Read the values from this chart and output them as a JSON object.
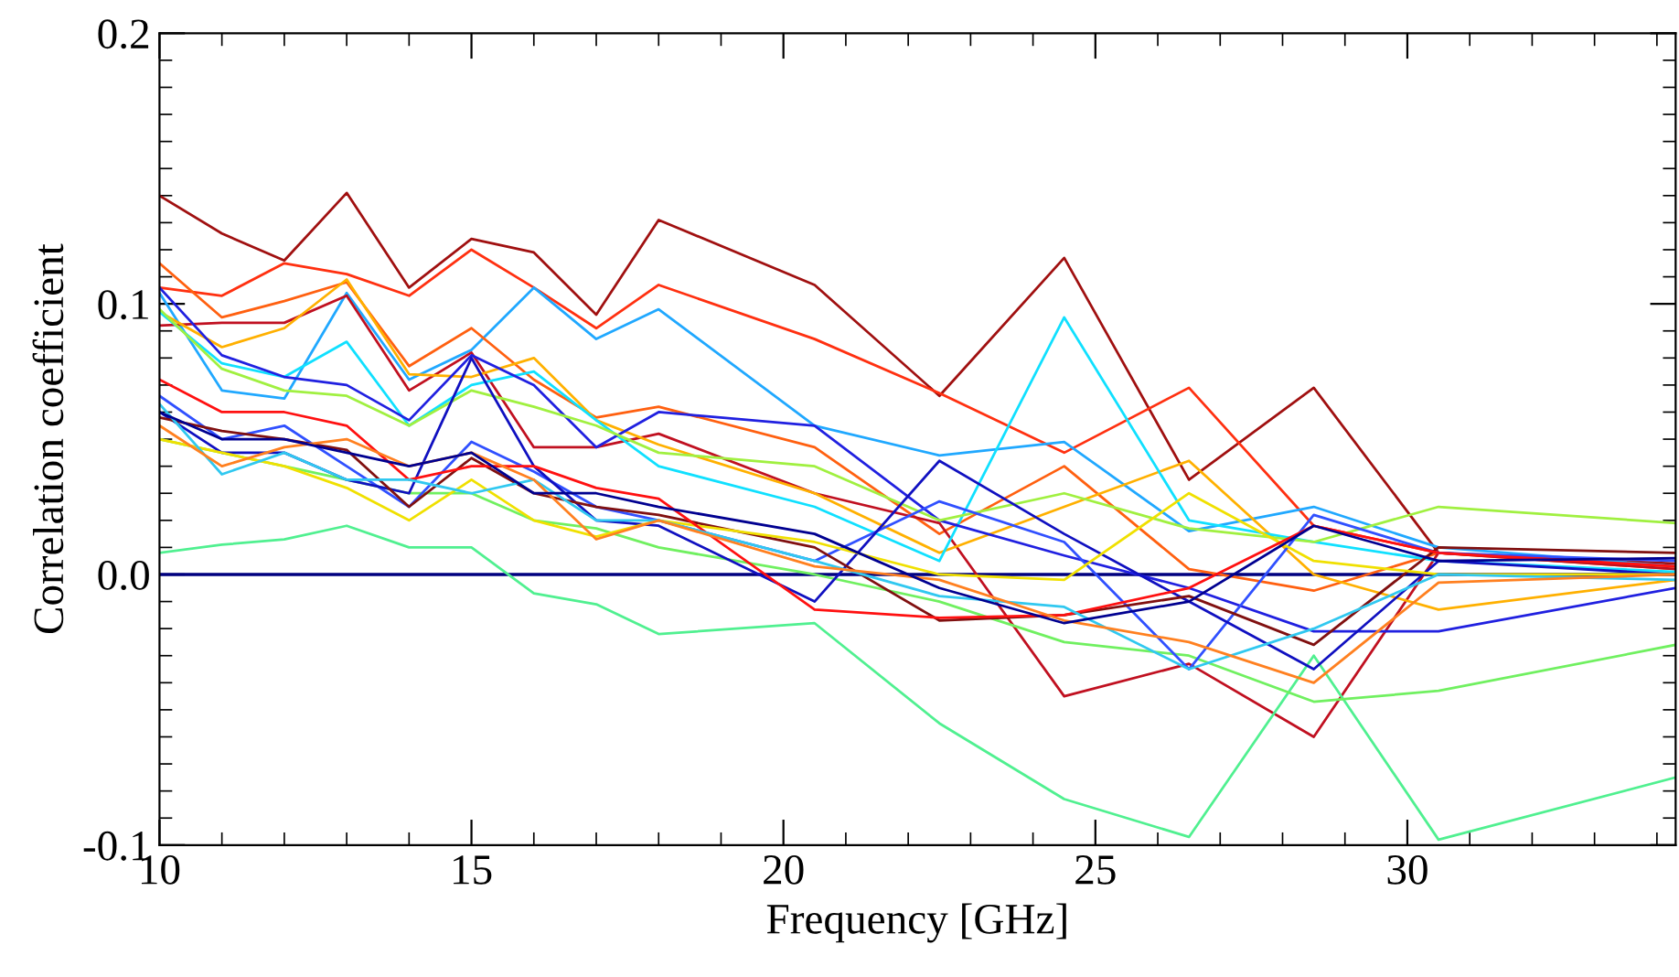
{
  "chart_data": {
    "type": "line",
    "xlabel": "Frequency [GHz]",
    "ylabel": "Correlation coefficient",
    "x": [
      10,
      11,
      12,
      13,
      14,
      15,
      16,
      17,
      18,
      20.5,
      22.5,
      24.5,
      26.5,
      28.5,
      30.5,
      34.3
    ],
    "xlim": [
      10,
      34.3
    ],
    "xticks": [
      10,
      15,
      20,
      25,
      30
    ],
    "ylim": [
      -0.1,
      0.2
    ],
    "yticks": [
      -0.1,
      {
        "value": 0,
        "label": "0.0"
      },
      0.1,
      0.2
    ],
    "grid": false,
    "legend": false,
    "marker": "none",
    "line_style": "solid",
    "ref_lines": [
      {
        "axis": "y",
        "value": 0.0,
        "label": null,
        "color": "#00007f",
        "line_style": "solid"
      }
    ],
    "series": [
      {
        "color": "#a01010",
        "values": [
          0.14,
          0.126,
          0.116,
          0.141,
          0.106,
          0.124,
          0.119,
          0.096,
          0.131,
          0.107,
          0.066,
          0.117,
          0.035,
          0.069,
          0.008,
          0.004
        ]
      },
      {
        "color": "#ff3010",
        "values": [
          0.106,
          0.103,
          0.115,
          0.111,
          0.103,
          0.12,
          0.106,
          0.091,
          0.107,
          0.087,
          0.067,
          0.045,
          0.069,
          0.018,
          0.008,
          0.003
        ]
      },
      {
        "color": "#20a8ff",
        "values": [
          0.104,
          0.068,
          0.065,
          0.104,
          0.072,
          0.083,
          0.106,
          0.087,
          0.098,
          0.055,
          0.044,
          0.049,
          0.016,
          0.025,
          0.01,
          0.003
        ]
      },
      {
        "color": "#ff6010",
        "values": [
          0.115,
          0.095,
          0.101,
          0.108,
          0.077,
          0.091,
          0.072,
          0.058,
          0.062,
          0.047,
          0.015,
          0.04,
          0.002,
          -0.006,
          0.008,
          0.002
        ]
      },
      {
        "color": "#c01020",
        "values": [
          0.092,
          0.093,
          0.093,
          0.103,
          0.068,
          0.082,
          0.047,
          0.047,
          0.052,
          0.03,
          0.019,
          -0.045,
          -0.033,
          -0.06,
          0.008,
          0.002
        ]
      },
      {
        "color": "#ffb000",
        "values": [
          0.097,
          0.084,
          0.091,
          0.109,
          0.074,
          0.073,
          0.08,
          0.057,
          0.048,
          0.03,
          0.008,
          0.025,
          0.042,
          0.0,
          -0.013,
          -0.002
        ]
      },
      {
        "color": "#10e0ff",
        "values": [
          0.097,
          0.078,
          0.073,
          0.086,
          0.055,
          0.07,
          0.075,
          0.057,
          0.04,
          0.025,
          0.005,
          0.095,
          0.02,
          0.012,
          0.005,
          0.001
        ]
      },
      {
        "color": "#2020e0",
        "values": [
          0.106,
          0.081,
          0.073,
          0.07,
          0.057,
          0.081,
          0.07,
          0.047,
          0.06,
          0.055,
          0.02,
          0.007,
          -0.005,
          -0.021,
          -0.021,
          -0.005
        ]
      },
      {
        "color": "#a0f040",
        "values": [
          0.098,
          0.076,
          0.068,
          0.066,
          0.055,
          0.068,
          0.062,
          0.055,
          0.045,
          0.04,
          0.02,
          0.03,
          0.017,
          0.012,
          0.025,
          0.019
        ]
      },
      {
        "color": "#50f090",
        "values": [
          0.008,
          0.011,
          0.013,
          0.018,
          0.01,
          0.01,
          -0.007,
          -0.011,
          -0.022,
          -0.018,
          -0.055,
          -0.083,
          -0.097,
          -0.03,
          -0.098,
          -0.075
        ]
      },
      {
        "color": "#70f060",
        "values": [
          0.05,
          0.045,
          0.04,
          0.035,
          0.03,
          0.03,
          0.02,
          0.017,
          0.01,
          0.0,
          -0.01,
          -0.025,
          -0.03,
          -0.047,
          -0.043,
          -0.026
        ]
      },
      {
        "color": "#3050ff",
        "values": [
          0.066,
          0.05,
          0.055,
          0.04,
          0.025,
          0.049,
          0.038,
          0.025,
          0.02,
          0.005,
          0.027,
          0.012,
          -0.035,
          0.022,
          0.008,
          0.005
        ]
      },
      {
        "color": "#1010c0",
        "values": [
          0.06,
          0.045,
          0.045,
          0.035,
          0.03,
          0.08,
          0.04,
          0.02,
          0.018,
          -0.01,
          0.042,
          0.015,
          -0.01,
          -0.035,
          0.005,
          0.0
        ]
      },
      {
        "color": "#801010",
        "values": [
          0.058,
          0.053,
          0.05,
          0.046,
          0.025,
          0.043,
          0.03,
          0.025,
          0.022,
          0.01,
          -0.017,
          -0.015,
          -0.008,
          -0.026,
          0.01,
          0.008
        ]
      },
      {
        "color": "#f0e000",
        "values": [
          0.05,
          0.045,
          0.04,
          0.032,
          0.02,
          0.035,
          0.02,
          0.014,
          0.02,
          0.012,
          0.0,
          -0.002,
          0.03,
          0.005,
          0.0,
          0.0
        ]
      },
      {
        "color": "#ff1010",
        "values": [
          0.072,
          0.06,
          0.06,
          0.055,
          0.035,
          0.04,
          0.04,
          0.032,
          0.028,
          -0.013,
          -0.016,
          -0.015,
          -0.005,
          0.018,
          0.008,
          0.003
        ]
      },
      {
        "color": "#30c8f0",
        "values": [
          0.063,
          0.037,
          0.045,
          0.035,
          0.035,
          0.03,
          0.035,
          0.02,
          0.02,
          0.005,
          -0.008,
          -0.012,
          -0.035,
          -0.02,
          0.0,
          -0.002
        ]
      },
      {
        "color": "#ff8020",
        "values": [
          0.055,
          0.04,
          0.047,
          0.05,
          0.04,
          0.045,
          0.035,
          0.013,
          0.02,
          0.003,
          -0.002,
          -0.017,
          -0.025,
          -0.04,
          -0.003,
          0.0
        ]
      },
      {
        "color": "#000090",
        "values": [
          0.06,
          0.05,
          0.05,
          0.045,
          0.04,
          0.045,
          0.03,
          0.03,
          0.025,
          0.015,
          -0.005,
          -0.018,
          -0.01,
          0.018,
          0.005,
          0.006
        ]
      }
    ]
  }
}
